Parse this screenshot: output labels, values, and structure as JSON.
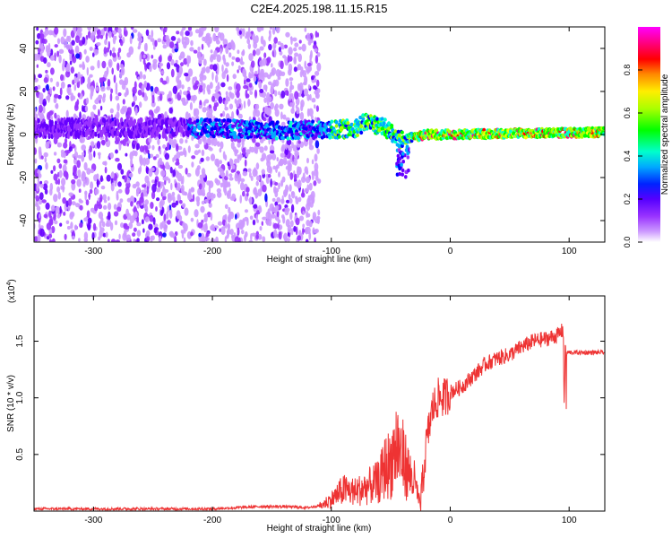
{
  "title": "C2E4.2025.198.11.15.R15",
  "chart_data": [
    {
      "type": "heatmap",
      "xlabel": "Height of straight line (km)",
      "ylabel": "Frequency (Hz)",
      "xlim": [
        -350,
        130
      ],
      "ylim": [
        -50,
        50
      ],
      "xticks": [
        -300,
        -200,
        -100,
        0,
        100
      ],
      "yticks": [
        -40,
        -20,
        0,
        20,
        40
      ],
      "grid": false,
      "colorbar": {
        "label": "Normalized spectral amplitude",
        "range": [
          0,
          1
        ],
        "ticks": [
          "0.0",
          "0.2",
          "0.4",
          "0.6",
          "0.8"
        ],
        "colors": [
          "#ffffff",
          "#cc99ff",
          "#9933ff",
          "#6600ff",
          "#0000ff",
          "#00aaff",
          "#00ffcc",
          "#00ff00",
          "#aaff00",
          "#ffff00",
          "#ff8800",
          "#ff0000",
          "#ff0088",
          "#ff00ff"
        ]
      },
      "description_points": {
        "noise_region_x": [
          -350,
          -110
        ],
        "center_line_points": [
          [
            -350,
            3
          ],
          [
            -300,
            3
          ],
          [
            -250,
            3
          ],
          [
            -220,
            3
          ],
          [
            -200,
            3
          ],
          [
            -150,
            2
          ],
          [
            -120,
            2
          ],
          [
            -100,
            2
          ],
          [
            -80,
            3
          ],
          [
            -70,
            6
          ],
          [
            -55,
            3
          ],
          [
            -40,
            -3
          ],
          [
            -30,
            -1
          ],
          [
            -20,
            0
          ],
          [
            0,
            0
          ],
          [
            50,
            0.5
          ],
          [
            100,
            0.8
          ],
          [
            130,
            1
          ]
        ]
      }
    },
    {
      "type": "line",
      "xlabel": "Height of straight line (km)",
      "ylabel": "SNR (10 * v/v)",
      "scale_label": "(x10",
      "scale_exp": "4",
      "xlim": [
        -350,
        130
      ],
      "ylim": [
        0,
        1.9
      ],
      "xticks": [
        -300,
        -200,
        -100,
        0,
        100
      ],
      "yticks": [
        "0.5",
        "1.0",
        "1.5"
      ],
      "ytick_values": [
        0.5,
        1.0,
        1.5
      ],
      "line_color": "#ee3333",
      "grid": false,
      "x": [
        -350,
        -300,
        -250,
        -200,
        -180,
        -160,
        -140,
        -120,
        -110,
        -100,
        -90,
        -80,
        -70,
        -60,
        -55,
        -50,
        -45,
        -40,
        -35,
        -30,
        -25,
        -20,
        -15,
        -10,
        -5,
        0,
        10,
        20,
        30,
        40,
        50,
        60,
        70,
        80,
        90,
        95,
        97,
        100,
        110,
        120,
        130
      ],
      "values": [
        0.02,
        0.02,
        0.02,
        0.02,
        0.03,
        0.04,
        0.04,
        0.03,
        0.05,
        0.12,
        0.22,
        0.2,
        0.25,
        0.3,
        0.45,
        0.5,
        0.7,
        0.55,
        0.4,
        0.3,
        0.05,
        0.6,
        0.9,
        1.0,
        1.0,
        1.05,
        1.1,
        1.2,
        1.3,
        1.35,
        1.38,
        1.45,
        1.5,
        1.52,
        1.55,
        1.6,
        1.4,
        1.4,
        1.4,
        1.4,
        1.4
      ]
    }
  ]
}
